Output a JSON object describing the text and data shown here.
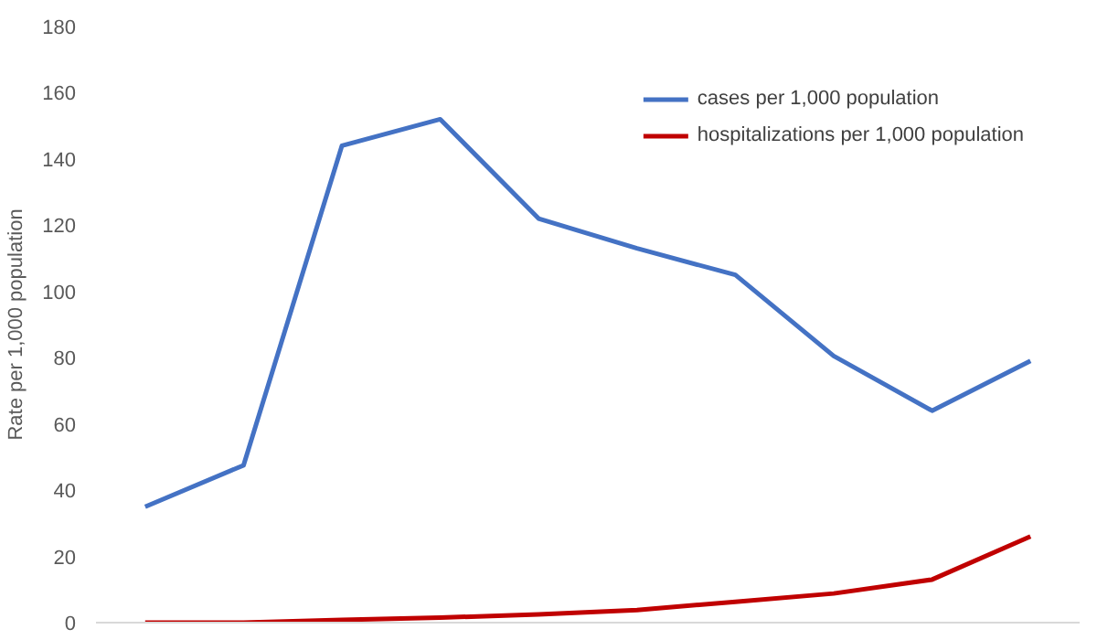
{
  "chart_data": {
    "type": "line",
    "ylabel": "Rate per 1,000 population",
    "categories": [
      null,
      null,
      null,
      null,
      null,
      null,
      null,
      null,
      null,
      null
    ],
    "series": [
      {
        "name": "cases per 1,000 population",
        "color": "#4472c4",
        "values": [
          35,
          47.5,
          144,
          152,
          122,
          113,
          105,
          80.5,
          64,
          79
        ]
      },
      {
        "name": "hospitalizations per 1,000 population",
        "color": "#c00000",
        "values": [
          0,
          0,
          0.8,
          1.5,
          2.5,
          3.8,
          6.3,
          8.8,
          13,
          26
        ]
      }
    ],
    "ylim": [
      0,
      180
    ],
    "yticks": [
      0,
      20,
      40,
      60,
      80,
      100,
      120,
      140,
      160,
      180
    ],
    "grid": false,
    "legend": "top right",
    "tick_labels": "y",
    "marker": "none",
    "line_style": "solid"
  }
}
